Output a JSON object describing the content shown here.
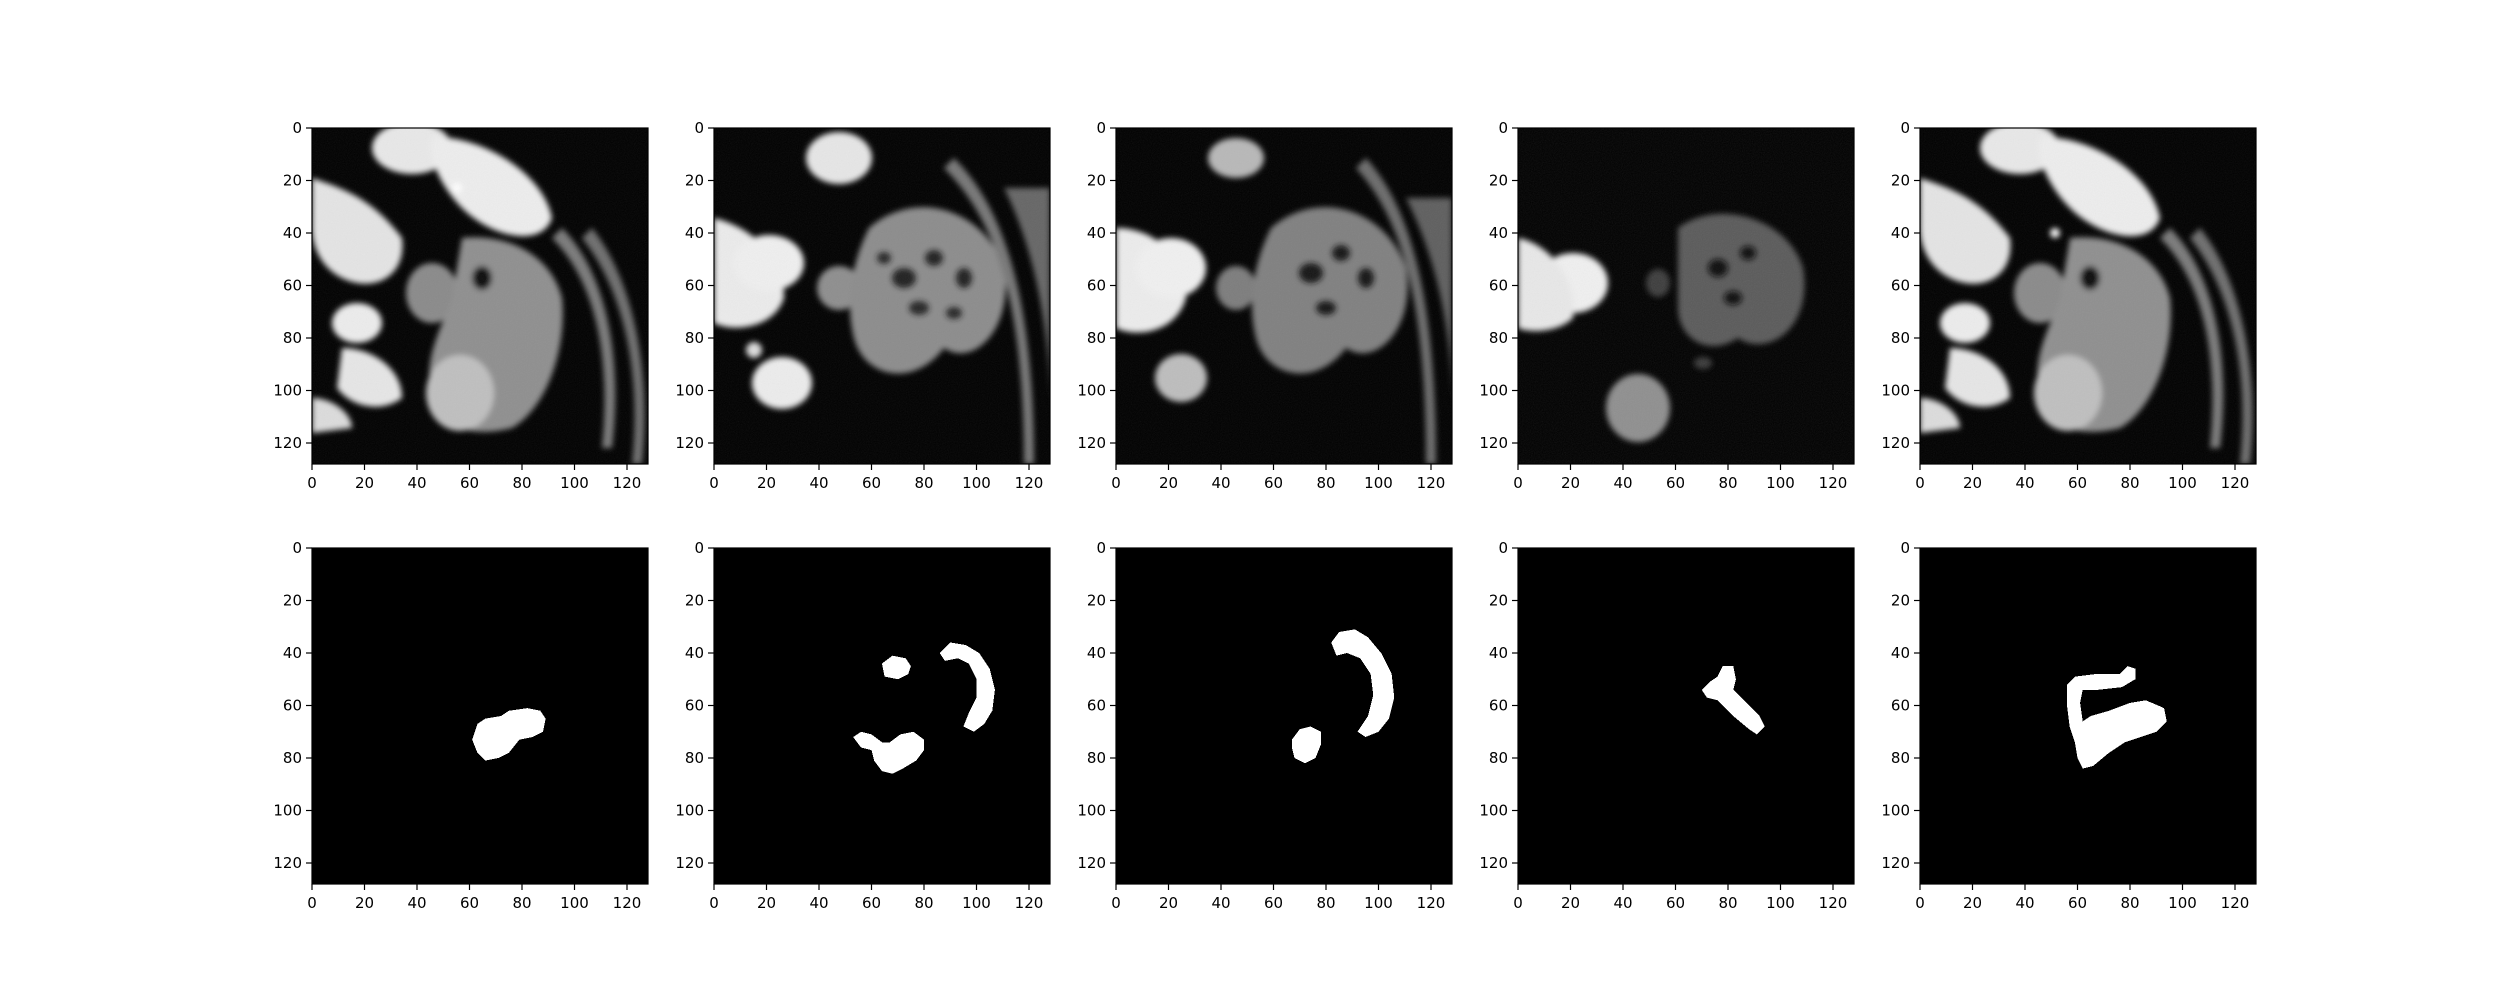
{
  "figure": {
    "layout": {
      "rows": 2,
      "columns": 5
    },
    "panels": [
      {
        "name": "ct-slice-1",
        "kind": "image",
        "content": "grayscale CT crop with bright organs and gray tissue mass",
        "xlim": [
          0,
          128
        ],
        "ylim": [
          128,
          0
        ]
      },
      {
        "name": "ct-slice-2",
        "kind": "image",
        "content": "grayscale CT crop with mottled bowel region",
        "xlim": [
          0,
          128
        ],
        "ylim": [
          128,
          0
        ]
      },
      {
        "name": "ct-slice-3",
        "kind": "image",
        "content": "grayscale CT crop with mottled bowel region",
        "xlim": [
          0,
          128
        ],
        "ylim": [
          128,
          0
        ]
      },
      {
        "name": "ct-slice-4",
        "kind": "image",
        "content": "grayscale CT crop, darker contrast",
        "xlim": [
          0,
          128
        ],
        "ylim": [
          128,
          0
        ]
      },
      {
        "name": "ct-slice-5",
        "kind": "image",
        "content": "grayscale CT crop similar to slice 1",
        "xlim": [
          0,
          128
        ],
        "ylim": [
          128,
          0
        ]
      },
      {
        "name": "mask-1",
        "kind": "mask",
        "content": "white blob on black background",
        "xlim": [
          0,
          128
        ],
        "ylim": [
          128,
          0
        ]
      },
      {
        "name": "mask-2",
        "kind": "mask",
        "content": "three white regions: small blob, arc, heart-shaped blob",
        "xlim": [
          0,
          128
        ],
        "ylim": [
          128,
          0
        ]
      },
      {
        "name": "mask-3",
        "kind": "mask",
        "content": "white arc and small blob",
        "xlim": [
          0,
          128
        ],
        "ylim": [
          128,
          0
        ]
      },
      {
        "name": "mask-4",
        "kind": "mask",
        "content": "white diagonal bar shape",
        "xlim": [
          0,
          128
        ],
        "ylim": [
          128,
          0
        ]
      },
      {
        "name": "mask-5",
        "kind": "mask",
        "content": "white hook-shaped region",
        "xlim": [
          0,
          128
        ],
        "ylim": [
          128,
          0
        ]
      }
    ],
    "x_ticks": [
      "0",
      "20",
      "40",
      "60",
      "80",
      "100",
      "120"
    ],
    "y_ticks": [
      "0",
      "20",
      "40",
      "60",
      "80",
      "100",
      "120"
    ],
    "colors": {
      "background": "#ffffff",
      "mask_fg": "#ffffff",
      "mask_bg": "#000000",
      "axis": "#000000"
    }
  }
}
